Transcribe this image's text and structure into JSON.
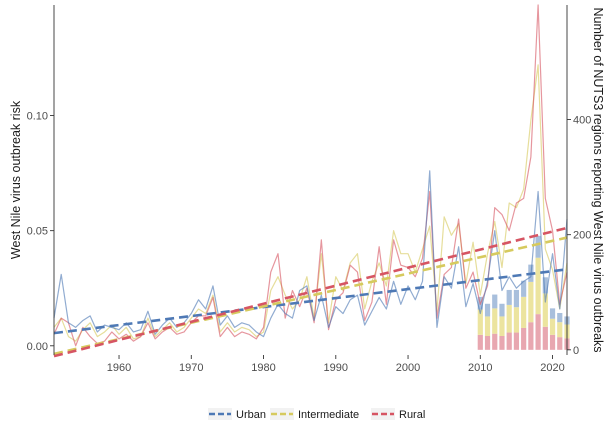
{
  "chart_data": {
    "type": "line",
    "title": "",
    "xlabel": "",
    "ylabel": "West Nile virus outbreak risk",
    "y2label": "Number of NUTS3 regions reporting West Nile virus outbreaks",
    "xlim": [
      1951,
      2022
    ],
    "ylim": [
      -0.004,
      0.148
    ],
    "y2lim": [
      -9,
      599
    ],
    "x_ticks": [
      1960,
      1970,
      1980,
      1990,
      2000,
      2010,
      2020
    ],
    "y_ticks": [
      0.0,
      0.05,
      0.1
    ],
    "y_tick_labels": [
      "0.00",
      "0.05",
      "0.10"
    ],
    "y2_ticks": [
      0,
      200,
      400
    ],
    "y2_tick_labels": [
      "0",
      "200",
      "400"
    ],
    "grid": false,
    "legend_position": "bottom",
    "colors": {
      "Urban": "#4e79b5",
      "Intermediate": "#d6ca5e",
      "Rural": "#d65563"
    },
    "x": [
      1951,
      1952,
      1953,
      1954,
      1955,
      1956,
      1957,
      1958,
      1959,
      1960,
      1961,
      1962,
      1963,
      1964,
      1965,
      1966,
      1967,
      1968,
      1969,
      1970,
      1971,
      1972,
      1973,
      1974,
      1975,
      1976,
      1977,
      1978,
      1979,
      1980,
      1981,
      1982,
      1983,
      1984,
      1985,
      1986,
      1987,
      1988,
      1989,
      1990,
      1991,
      1992,
      1993,
      1994,
      1995,
      1996,
      1997,
      1998,
      1999,
      2000,
      2001,
      2002,
      2003,
      2004,
      2005,
      2006,
      2007,
      2008,
      2009,
      2010,
      2011,
      2012,
      2013,
      2014,
      2015,
      2016,
      2017,
      2018,
      2019,
      2020,
      2021,
      2022
    ],
    "series": [
      {
        "name": "Urban",
        "values": [
          0.012,
          0.031,
          0.01,
          0.008,
          0.011,
          0.013,
          0.006,
          0.009,
          0.008,
          0.007,
          0.01,
          0.006,
          0.007,
          0.015,
          0.005,
          0.009,
          0.012,
          0.008,
          0.01,
          0.014,
          0.02,
          0.016,
          0.026,
          0.009,
          0.013,
          0.008,
          0.01,
          0.009,
          0.006,
          0.004,
          0.012,
          0.018,
          0.014,
          0.012,
          0.024,
          0.026,
          0.011,
          0.022,
          0.008,
          0.017,
          0.014,
          0.02,
          0.022,
          0.009,
          0.015,
          0.021,
          0.016,
          0.028,
          0.018,
          0.026,
          0.02,
          0.028,
          0.076,
          0.008,
          0.03,
          0.025,
          0.043,
          0.017,
          0.027,
          0.014,
          0.028,
          0.05,
          0.024,
          0.03,
          0.025,
          0.028,
          0.03,
          0.067,
          0.019,
          0.04,
          0.016,
          0.055
        ],
        "trend": [
          0.0055,
          0.0332
        ]
      },
      {
        "name": "Intermediate",
        "values": [
          0.008,
          0.012,
          0.004,
          0.002,
          0.007,
          0.01,
          0.004,
          0.006,
          0.009,
          0.005,
          0.008,
          0.003,
          0.004,
          0.012,
          0.004,
          0.007,
          0.01,
          0.006,
          0.008,
          0.012,
          0.016,
          0.014,
          0.022,
          0.006,
          0.01,
          0.006,
          0.008,
          0.007,
          0.004,
          0.006,
          0.024,
          0.03,
          0.022,
          0.016,
          0.02,
          0.03,
          0.012,
          0.04,
          0.01,
          0.03,
          0.024,
          0.036,
          0.04,
          0.016,
          0.028,
          0.036,
          0.026,
          0.05,
          0.04,
          0.04,
          0.032,
          0.042,
          0.052,
          0.015,
          0.056,
          0.048,
          0.053,
          0.027,
          0.045,
          0.022,
          0.04,
          0.054,
          0.034,
          0.062,
          0.06,
          0.068,
          0.098,
          0.122,
          0.042,
          0.033,
          0.016,
          0.036
        ],
        "trend": [
          -0.0035,
          0.047
        ]
      },
      {
        "name": "Rural",
        "values": [
          0.005,
          0.012,
          0.01,
          0.0,
          0.008,
          0.004,
          0.001,
          0.002,
          0.006,
          0.003,
          0.005,
          0.002,
          0.004,
          0.01,
          0.003,
          0.006,
          0.008,
          0.005,
          0.006,
          0.01,
          0.013,
          0.013,
          0.021,
          0.004,
          0.008,
          0.004,
          0.006,
          0.005,
          0.003,
          0.008,
          0.032,
          0.04,
          0.012,
          0.024,
          0.017,
          0.025,
          0.01,
          0.046,
          0.007,
          0.02,
          0.023,
          0.035,
          0.032,
          0.011,
          0.019,
          0.043,
          0.018,
          0.046,
          0.035,
          0.034,
          0.03,
          0.038,
          0.067,
          0.012,
          0.031,
          0.034,
          0.055,
          0.025,
          0.032,
          0.018,
          0.026,
          0.06,
          0.057,
          0.05,
          0.062,
          0.064,
          0.082,
          0.148,
          0.064,
          0.05,
          0.018,
          0.032
        ],
        "trend": [
          -0.0045,
          0.0512
        ]
      }
    ],
    "bar_series": {
      "axis": "y2",
      "type": "stacked-bar",
      "x": [
        2010,
        2011,
        2012,
        2013,
        2014,
        2015,
        2016,
        2017,
        2018,
        2019,
        2020,
        2021,
        2022
      ],
      "stacks": [
        {
          "name": "Rural",
          "values": [
            26,
            24,
            28,
            24,
            30,
            30,
            38,
            48,
            62,
            40,
            26,
            22,
            20
          ]
        },
        {
          "name": "Intermediate",
          "values": [
            44,
            34,
            44,
            34,
            48,
            44,
            54,
            70,
            98,
            58,
            28,
            26,
            24
          ]
        },
        {
          "name": "Urban",
          "values": [
            22,
            22,
            24,
            22,
            26,
            30,
            28,
            30,
            38,
            28,
            18,
            16,
            14
          ]
        }
      ]
    }
  },
  "legend": {
    "items": [
      {
        "label": "Urban",
        "color": "#4e79b5"
      },
      {
        "label": "Intermediate",
        "color": "#d6ca5e"
      },
      {
        "label": "Rural",
        "color": "#d65563"
      }
    ]
  }
}
